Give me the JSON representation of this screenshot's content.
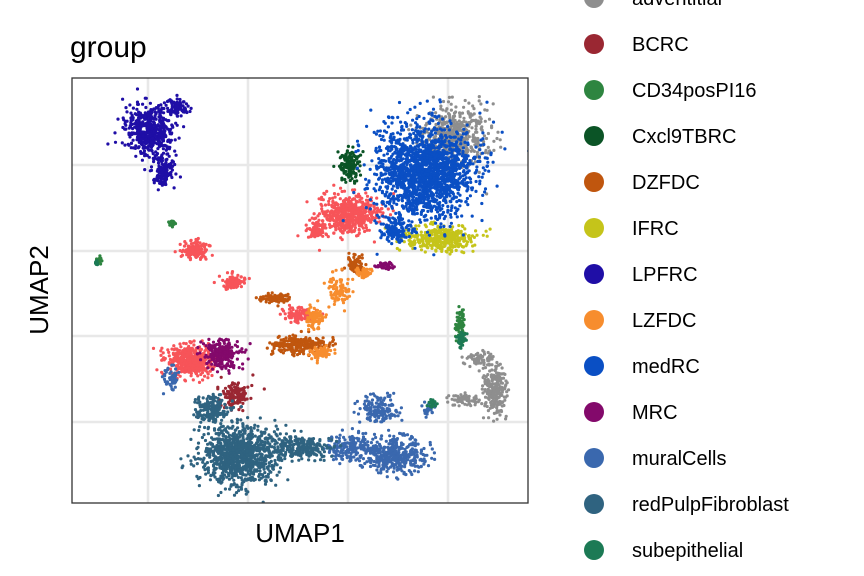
{
  "chart_data": {
    "type": "scatter",
    "title": "group",
    "xlabel": "UMAP1",
    "ylabel": "UMAP2",
    "grid": true,
    "legend_position": "right",
    "x_ticks_shown": false,
    "y_ticks_shown": false,
    "series": [
      {
        "name": "adventitial",
        "color": "#8E8E8E"
      },
      {
        "name": "BCRC",
        "color": "#9A2732"
      },
      {
        "name": "CD34posPI16",
        "color": "#2E8540"
      },
      {
        "name": "Cxcl9TBRC",
        "color": "#0B5426"
      },
      {
        "name": "DZFDC",
        "color": "#C0560E"
      },
      {
        "name": "IFRC",
        "color": "#C5C41A"
      },
      {
        "name": "LPFRC",
        "color": "#1F0EA6"
      },
      {
        "name": "LZFDC",
        "color": "#F78D2E"
      },
      {
        "name": "medRC",
        "color": "#0A4FC4"
      },
      {
        "name": "MRC",
        "color": "#83096B"
      },
      {
        "name": "muralCells",
        "color": "#3A68AE"
      },
      {
        "name": "redPulpFibroblast",
        "color": "#2F6380"
      },
      {
        "name": "subepithelial",
        "color": "#1C7A55"
      }
    ],
    "extra_colors": {
      "red_cluster": "#F75459"
    }
  }
}
